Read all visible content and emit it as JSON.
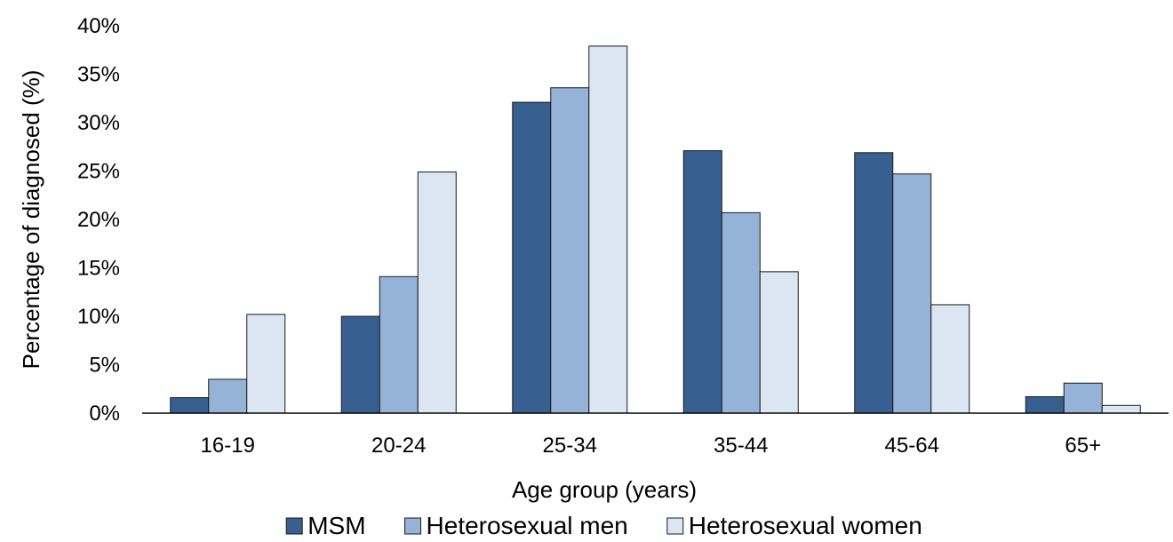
{
  "chart_data": {
    "type": "bar",
    "title": "",
    "xlabel": "Age group (years)",
    "ylabel": "Percentage of diagnosed (%)",
    "ylim": [
      0,
      40
    ],
    "yticks": [
      0,
      5,
      10,
      15,
      20,
      25,
      30,
      35,
      40
    ],
    "ytick_suffix": "%",
    "grid": false,
    "legend_position": "bottom",
    "categories": [
      "16-19",
      "20-24",
      "25-34",
      "35-44",
      "45-64",
      "65+"
    ],
    "series": [
      {
        "name": "MSM",
        "color": "#375f8f",
        "values": [
          1.6,
          10.0,
          32.1,
          27.1,
          26.9,
          1.7
        ]
      },
      {
        "name": "Heterosexual men",
        "color": "#95b3d7",
        "values": [
          3.5,
          14.1,
          33.6,
          20.7,
          24.7,
          3.1
        ]
      },
      {
        "name": "Heterosexual women",
        "color": "#dce6f2",
        "values": [
          10.2,
          24.9,
          37.9,
          14.6,
          11.2,
          0.8
        ]
      }
    ]
  }
}
